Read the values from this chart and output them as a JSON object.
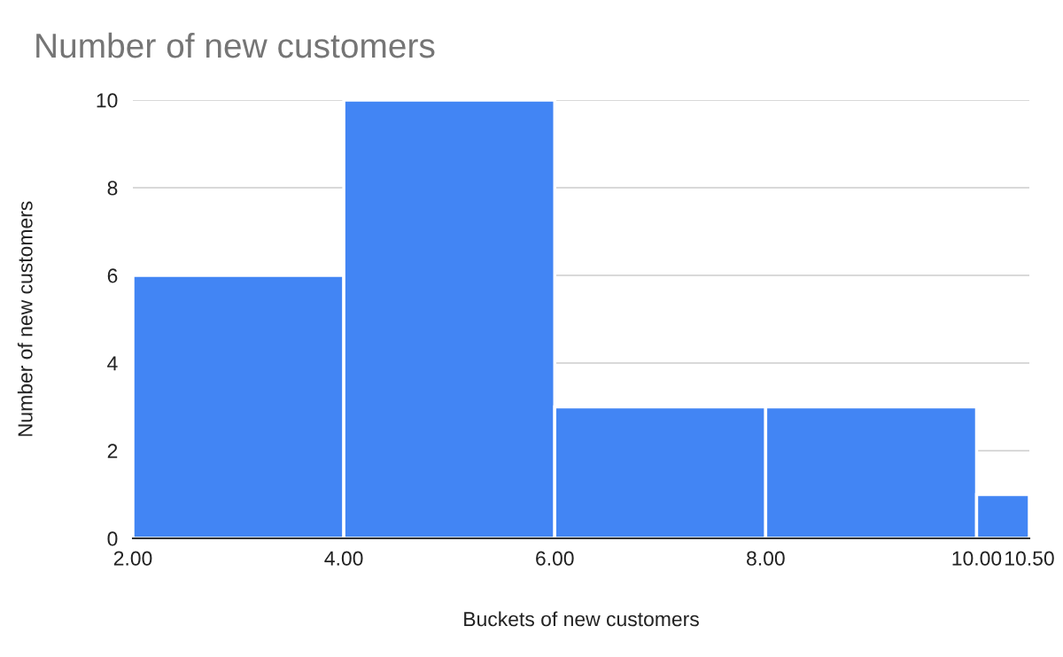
{
  "chart_data": {
    "type": "histogram",
    "title": "Number of new customers",
    "xlabel": "Buckets of new customers",
    "ylabel": "Number of new customers",
    "bins": [
      2,
      4,
      6,
      8,
      10,
      10.5
    ],
    "values": [
      6,
      10,
      3,
      3,
      1
    ],
    "color": "#4285f4",
    "xlim": [
      2,
      10.5
    ],
    "xticks": [
      {
        "value": 2,
        "label": "2.00"
      },
      {
        "value": 4,
        "label": "4.00"
      },
      {
        "value": 6,
        "label": "6.00"
      },
      {
        "value": 8,
        "label": "8.00"
      },
      {
        "value": 10,
        "label": "10.00"
      },
      {
        "value": 10.5,
        "label": "10.50"
      }
    ],
    "ylim": [
      0,
      10
    ],
    "yticks": [
      0,
      2,
      4,
      6,
      8,
      10
    ],
    "grid": "y"
  }
}
